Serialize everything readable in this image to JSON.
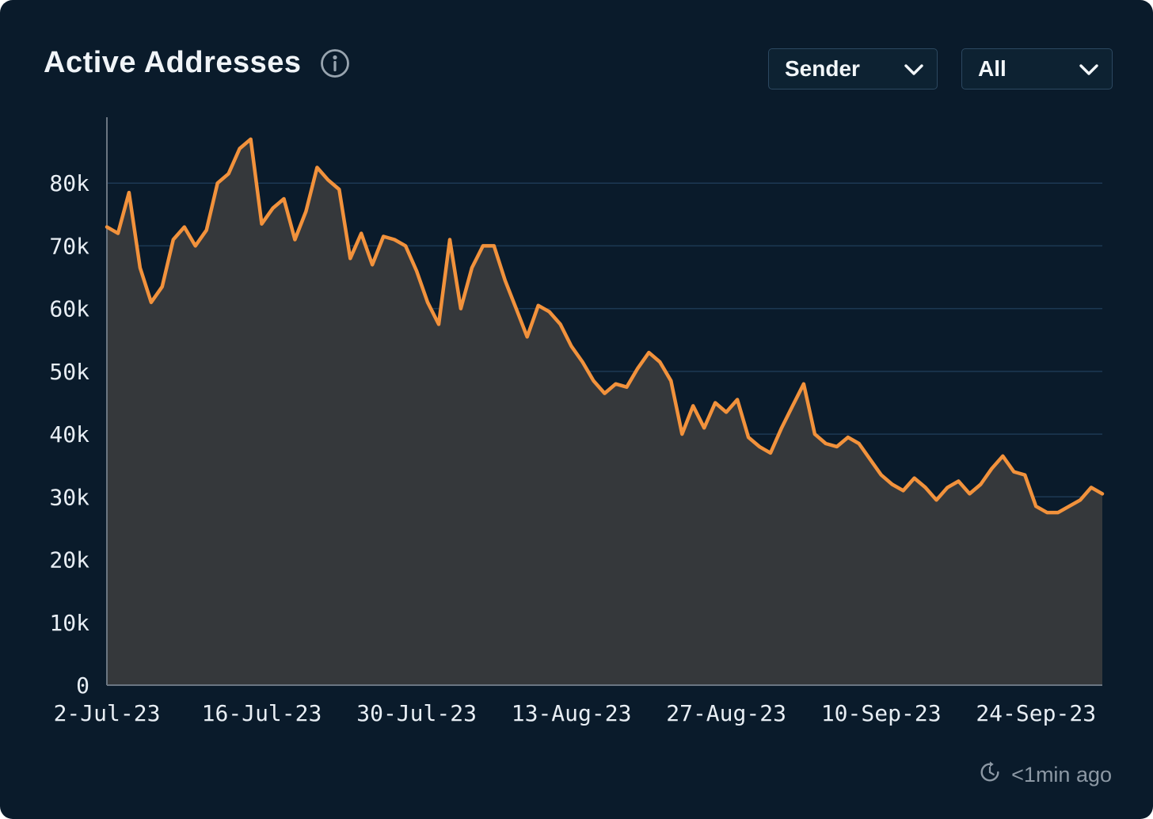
{
  "header": {
    "title": "Active Addresses",
    "filters": [
      {
        "label": "Sender"
      },
      {
        "label": "All"
      }
    ]
  },
  "footer": {
    "last_updated": "<1min ago"
  },
  "icons": {
    "info": "info-icon (circled i)",
    "chevron": "chevron-down-icon",
    "clock": "refresh-clock-icon"
  },
  "chart_data": {
    "type": "area",
    "title": "Active Addresses",
    "x_note": "daily values; index 0 = 2-Jul-23, one point per day",
    "x_tick_indices": [
      0,
      14,
      28,
      42,
      56,
      70,
      84
    ],
    "x_tick_labels": [
      "2-Jul-23",
      "16-Jul-23",
      "30-Jul-23",
      "13-Aug-23",
      "27-Aug-23",
      "10-Sep-23",
      "24-Sep-23"
    ],
    "y_tick_values": [
      0,
      10,
      20,
      30,
      40,
      50,
      60,
      70,
      80
    ],
    "y_tick_labels": [
      "0",
      "10k",
      "20k",
      "30k",
      "40k",
      "50k",
      "60k",
      "70k",
      "80k"
    ],
    "ylim": [
      0,
      90.5
    ],
    "unit": "addresses (thousands)",
    "grid": "horizontal",
    "legend": "none",
    "line_color": "#f2923c",
    "area_fill_color": "#35383b",
    "grid_color": "#1d3954",
    "axis_color": "#6b7682",
    "tick_label_color": "#e8eef4",
    "values_k": [
      73,
      72,
      78.5,
      66.5,
      61,
      63.5,
      71,
      73,
      70,
      72.5,
      80,
      81.5,
      85.5,
      87,
      73.5,
      76,
      77.5,
      71,
      75.5,
      82.5,
      80.5,
      79,
      68,
      72,
      67,
      71.5,
      71,
      70,
      66,
      61,
      57.5,
      71,
      60,
      66.5,
      70,
      70,
      64.5,
      60,
      55.5,
      60.5,
      59.5,
      57.5,
      54,
      51.5,
      48.5,
      46.5,
      48,
      47.5,
      50.5,
      53,
      51.5,
      48.5,
      40,
      44.5,
      41,
      45,
      43.5,
      45.5,
      39.5,
      38,
      37,
      41,
      44.5,
      48,
      40,
      38.5,
      38,
      39.5,
      38.5,
      36,
      33.5,
      32,
      31,
      33,
      31.5,
      29.5,
      31.5,
      32.5,
      30.5,
      32,
      34.5,
      36.5,
      34,
      33.5,
      28.5,
      27.5,
      27.5,
      28.5,
      29.5,
      31.5,
      30.5
    ]
  }
}
